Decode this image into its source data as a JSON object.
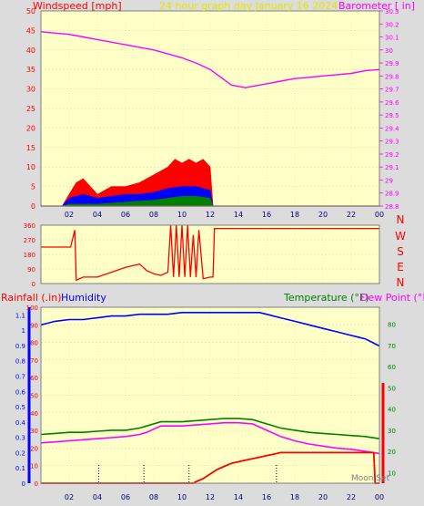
{
  "top_titles": {
    "left": "Windspeed [mph]",
    "center": "24 hour graph day   January 16 2024",
    "right": "Barometer [ in]"
  },
  "compass": [
    "N",
    "W",
    "S",
    "E",
    "N"
  ],
  "bottom_titles": {
    "rainfall": "Rainfall (.in)",
    "humidity": "Humidity",
    "temperature": "Temperature (°F)",
    "dewpoint": "Dew Point (°F)"
  },
  "moon_label": "Moon Set",
  "colors": {
    "plot_bg": "#ffffc8",
    "wind": "#ff0000",
    "wind_avg": "#0000ff",
    "wind_min": "#008000",
    "barometer": "#ff00ff",
    "direction": "#ff0000",
    "humidity": "#0000ff",
    "temperature": "#008000",
    "dewpoint": "#ff00ff",
    "rain": "#ff0000"
  },
  "chart_data": [
    {
      "type": "line",
      "name": "wind-barometer",
      "x_ticks": [
        "02",
        "04",
        "06",
        "08",
        "10",
        "12",
        "14",
        "16",
        "18",
        "20",
        "22",
        "00"
      ],
      "y_left_ticks": [
        "0",
        "5",
        "10",
        "15",
        "20",
        "25",
        "30",
        "35",
        "40",
        "45",
        "50"
      ],
      "y_right_ticks": [
        "28.8",
        "28.9",
        "29",
        "29.1",
        "29.2",
        "29.3",
        "29.4",
        "29.5",
        "29.6",
        "29.7",
        "29.8",
        "29.9",
        "30",
        "30.1",
        "30.2",
        "30.3"
      ],
      "ylim_left": [
        0,
        50
      ],
      "ylim_right": [
        28.8,
        30.3
      ],
      "xlim": [
        0,
        24
      ],
      "barometer": {
        "x": [
          0,
          1,
          2,
          3,
          4,
          5,
          6,
          7,
          8,
          9,
          10,
          11,
          12,
          12.5,
          13,
          13.5,
          14,
          14.5,
          15,
          16,
          17,
          18,
          19,
          20,
          21,
          22,
          23,
          24
        ],
        "y": [
          30.14,
          30.13,
          30.12,
          30.1,
          30.08,
          30.06,
          30.04,
          30.02,
          30.0,
          29.97,
          29.94,
          29.9,
          29.85,
          29.81,
          29.77,
          29.73,
          29.72,
          29.71,
          29.72,
          29.74,
          29.76,
          29.78,
          29.79,
          29.8,
          29.81,
          29.82,
          29.84,
          29.85
        ]
      },
      "wind_gust_envelope": {
        "x": [
          0,
          1.5,
          2,
          2.5,
          3,
          4,
          5,
          6,
          7,
          8,
          8.5,
          9,
          9.5,
          10,
          10.5,
          11,
          11.5,
          12,
          12.2,
          24
        ],
        "y": [
          0,
          0,
          3,
          6,
          7,
          3,
          5,
          5,
          6,
          8,
          9,
          10,
          12,
          11,
          12,
          11,
          12,
          10,
          0,
          0
        ]
      },
      "wind_avg_envelope": {
        "x": [
          0,
          1.5,
          2,
          3,
          4,
          5,
          6,
          7,
          8,
          9,
          10,
          11,
          12,
          12.2,
          24
        ],
        "y": [
          0,
          0,
          2,
          3,
          2,
          2.5,
          3,
          3,
          3.5,
          4.5,
          5,
          5,
          4,
          0,
          0
        ]
      },
      "wind_min_envelope": {
        "x": [
          0,
          1.5,
          2,
          4,
          6,
          8,
          9,
          10,
          11,
          12,
          12.2,
          24
        ],
        "y": [
          0,
          0,
          0.5,
          0.5,
          1,
          1.5,
          2,
          2.5,
          2.5,
          2,
          0,
          0
        ]
      }
    },
    {
      "type": "line",
      "name": "wind-direction",
      "y_ticks": [
        "0",
        "90",
        "180",
        "270",
        "360"
      ],
      "ylim": [
        0,
        360
      ],
      "xlim": [
        0,
        24
      ],
      "direction": {
        "x": [
          0,
          2.1,
          2.4,
          2.5,
          3,
          4,
          5,
          6,
          6.5,
          7,
          7.5,
          8,
          8.5,
          9,
          9.2,
          9.4,
          9.6,
          9.8,
          10,
          10.2,
          10.4,
          10.6,
          10.8,
          11,
          11.2,
          11.5,
          12,
          12.2,
          12.3,
          24
        ],
        "y": [
          225,
          225,
          330,
          20,
          40,
          40,
          70,
          100,
          110,
          120,
          80,
          60,
          50,
          70,
          360,
          40,
          360,
          40,
          360,
          40,
          360,
          40,
          300,
          40,
          330,
          30,
          40,
          40,
          340,
          340
        ]
      }
    },
    {
      "type": "line",
      "name": "rain-humidity-temperature",
      "x_ticks": [
        "02",
        "04",
        "06",
        "08",
        "10",
        "12",
        "14",
        "16",
        "18",
        "20",
        "22",
        "00"
      ],
      "y_rain_ticks": [
        "0",
        "0.1",
        "0.2",
        "0.3",
        "0.4",
        "0.5",
        "0.6",
        "0.7",
        "0.8",
        "0.9",
        "1",
        "1.1"
      ],
      "y_humidity_ticks": [
        "0",
        "10",
        "20",
        "30",
        "40",
        "50",
        "60",
        "70",
        "80",
        "90",
        "100"
      ],
      "y_temp_ticks": [
        "10",
        "20",
        "30",
        "40",
        "50",
        "60",
        "70",
        "80"
      ],
      "ylim_rain": [
        0,
        1.15
      ],
      "ylim_humidity": [
        0,
        100
      ],
      "ylim_temp": [
        5,
        88
      ],
      "xlim": [
        0,
        24
      ],
      "humidity": {
        "x": [
          0,
          0.5,
          1,
          2,
          3,
          4,
          5,
          6,
          7,
          8,
          9,
          10,
          11,
          12,
          13,
          14,
          15,
          15.5,
          16,
          17,
          18,
          19,
          20,
          21,
          22,
          22.5,
          23,
          23.5,
          24
        ],
        "y": [
          90,
          91,
          92,
          93,
          93,
          94,
          95,
          95,
          96,
          96,
          96,
          97,
          97,
          97,
          97,
          97,
          97,
          97,
          96,
          94,
          92,
          90,
          88,
          86,
          84,
          83,
          82,
          80,
          78
        ]
      },
      "temperature": {
        "x": [
          0,
          1,
          2,
          3,
          4,
          5,
          6,
          7,
          7.5,
          8,
          8.5,
          9,
          10,
          11,
          12,
          13,
          14,
          15,
          16,
          17,
          18,
          19,
          20,
          21,
          22,
          23,
          24
        ],
        "y": [
          28,
          28.5,
          29,
          29,
          29.5,
          30,
          30,
          31,
          32,
          33,
          34,
          34,
          34,
          34.5,
          35,
          35.5,
          35.5,
          35,
          33,
          31,
          30,
          29,
          28.5,
          28,
          27.5,
          27,
          26
        ]
      },
      "dewpoint": {
        "x": [
          0,
          1,
          2,
          3,
          4,
          5,
          6,
          7,
          7.5,
          8,
          8.5,
          9,
          10,
          11,
          12,
          13,
          14,
          15,
          16,
          17,
          18,
          19,
          20,
          21,
          22,
          23,
          24
        ],
        "y": [
          24,
          24.5,
          25,
          25.5,
          26,
          26.5,
          27,
          28,
          29,
          30.5,
          32,
          32,
          32,
          32.5,
          33,
          33.5,
          33.5,
          33,
          30,
          27,
          25,
          23.5,
          22.5,
          21.5,
          21,
          20,
          19
        ]
      },
      "rain": {
        "x": [
          0,
          10.8,
          11,
          11.5,
          12,
          12.5,
          13,
          13.5,
          14,
          14.5,
          15,
          15.5,
          16,
          16.5,
          17,
          18,
          19,
          20,
          21,
          22,
          23,
          23.6,
          23.7,
          24
        ],
        "y": [
          0,
          0,
          0.01,
          0.03,
          0.06,
          0.09,
          0.11,
          0.13,
          0.14,
          0.15,
          0.16,
          0.17,
          0.18,
          0.19,
          0.2,
          0.2,
          0.2,
          0.2,
          0.2,
          0.2,
          0.2,
          0.2,
          0.0,
          0.0
        ]
      },
      "markers_x": [
        4.1,
        7.3,
        10.5,
        16.7
      ]
    }
  ]
}
